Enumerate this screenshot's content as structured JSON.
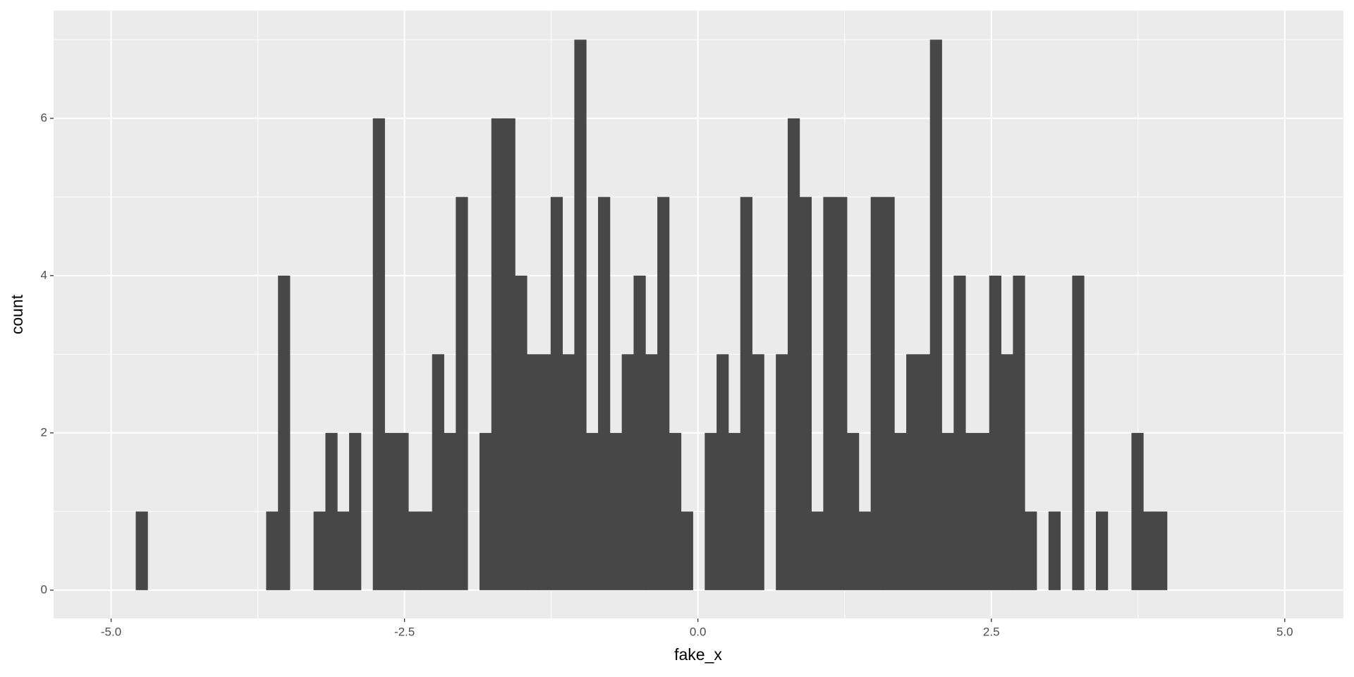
{
  "chart_data": {
    "type": "histogram",
    "x_label": "fake_x",
    "y_label": "count",
    "bins": [
      -4.79,
      -4.689,
      -4.588,
      -4.487,
      -4.386,
      -4.285,
      -4.184,
      -4.083,
      -3.982,
      -3.881,
      -3.78,
      -3.679,
      -3.578,
      -3.477,
      -3.376,
      -3.275,
      -3.174,
      -3.073,
      -2.972,
      -2.871,
      -2.77,
      -2.669,
      -2.568,
      -2.467,
      -2.366,
      -2.265,
      -2.164,
      -2.063,
      -1.962,
      -1.861,
      -1.76,
      -1.659,
      -1.558,
      -1.457,
      -1.356,
      -1.255,
      -1.154,
      -1.053,
      -0.952,
      -0.851,
      -0.75,
      -0.649,
      -0.548,
      -0.447,
      -0.346,
      -0.245,
      -0.144,
      -0.043,
      0.058,
      0.159,
      0.26,
      0.361,
      0.462,
      0.563,
      0.664,
      0.765,
      0.866,
      0.967,
      1.068,
      1.169,
      1.27,
      1.371,
      1.472,
      1.573,
      1.674,
      1.775,
      1.876,
      1.977,
      2.078,
      2.179,
      2.28,
      2.381,
      2.482,
      2.583,
      2.684,
      2.785,
      2.886,
      2.987,
      3.088,
      3.189,
      3.29,
      3.391,
      3.492,
      3.593,
      3.694,
      3.795,
      3.896,
      3.997
    ],
    "values": [
      1,
      0,
      0,
      0,
      0,
      0,
      0,
      0,
      0,
      0,
      0,
      1,
      4,
      0,
      0,
      1,
      2,
      1,
      2,
      0,
      6,
      2,
      2,
      1,
      1,
      3,
      2,
      5,
      0,
      2,
      6,
      6,
      4,
      3,
      3,
      5,
      3,
      7,
      2,
      5,
      2,
      3,
      4,
      3,
      5,
      2,
      1,
      0,
      2,
      3,
      2,
      5,
      3,
      0,
      3,
      6,
      5,
      1,
      5,
      5,
      2,
      1,
      5,
      5,
      2,
      3,
      3,
      7,
      2,
      4,
      2,
      2,
      4,
      3,
      4,
      1,
      0,
      1,
      0,
      4,
      0,
      1,
      0,
      0,
      2,
      1,
      1
    ],
    "color": "#474747",
    "xlim": [
      -5.49,
      5.5
    ],
    "xticks": [
      {
        "value": -5,
        "label": "-5.0"
      },
      -2.5,
      {
        "value": 0,
        "label": "0.0"
      },
      2.5,
      {
        "value": 5,
        "label": "5.0"
      }
    ],
    "xminor": [
      -3.75,
      -1.25,
      1.25,
      3.75
    ],
    "ylim": [
      -0.36,
      7.37
    ],
    "yticks": [
      0,
      2,
      4,
      6
    ],
    "yminor": [
      1,
      3,
      5,
      7
    ],
    "grid": true
  }
}
